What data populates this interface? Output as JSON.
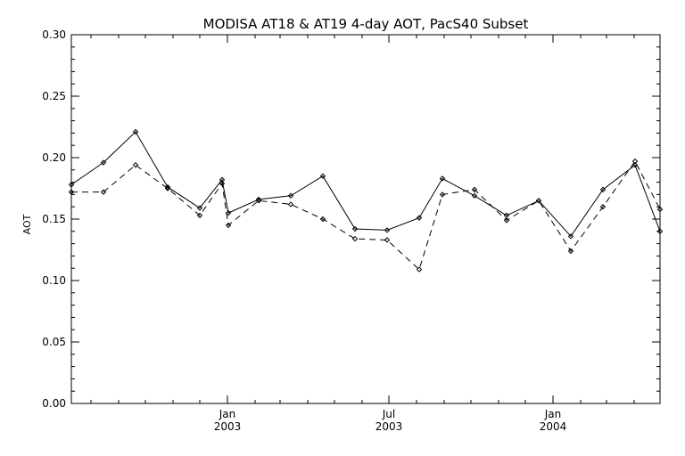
{
  "chart_data": {
    "type": "line",
    "title": "MODISA AT18 & AT19 4-day AOT, PacS40 Subset",
    "xlabel": "",
    "ylabel": "AOT",
    "ylim": [
      0.0,
      0.3
    ],
    "y_ticks": [
      "0.00",
      "0.05",
      "0.10",
      "0.15",
      "0.20",
      "0.25",
      "0.30"
    ],
    "x_range": [
      "2002-07-10",
      "2004-04-30"
    ],
    "x_ticks": [
      {
        "date": "2003-01-01",
        "month": "Jan",
        "year": "2003"
      },
      {
        "date": "2003-07-01",
        "month": "Jul",
        "year": "2003"
      },
      {
        "date": "2004-01-01",
        "month": "Jan",
        "year": "2004"
      }
    ],
    "grid": false,
    "series": [
      {
        "style": "solid",
        "color": "#000000",
        "points": [
          {
            "x": "2002-07-10",
            "y": 0.178
          },
          {
            "x": "2002-08-15",
            "y": 0.196
          },
          {
            "x": "2002-09-20",
            "y": 0.221
          },
          {
            "x": "2002-10-26",
            "y": 0.176
          },
          {
            "x": "2002-12-01",
            "y": 0.159
          },
          {
            "x": "2002-12-26",
            "y": 0.182
          },
          {
            "x": "2003-01-02",
            "y": 0.155
          },
          {
            "x": "2003-02-05",
            "y": 0.166
          },
          {
            "x": "2003-03-13",
            "y": 0.169
          },
          {
            "x": "2003-04-18",
            "y": 0.185
          },
          {
            "x": "2003-05-24",
            "y": 0.142
          },
          {
            "x": "2003-06-29",
            "y": 0.141
          },
          {
            "x": "2003-08-04",
            "y": 0.151
          },
          {
            "x": "2003-08-30",
            "y": 0.183
          },
          {
            "x": "2003-10-05",
            "y": 0.169
          },
          {
            "x": "2003-11-10",
            "y": 0.153
          },
          {
            "x": "2003-12-16",
            "y": 0.165
          },
          {
            "x": "2004-01-21",
            "y": 0.136
          },
          {
            "x": "2004-02-26",
            "y": 0.174
          },
          {
            "x": "2004-04-02",
            "y": 0.194
          },
          {
            "x": "2004-04-30",
            "y": 0.14
          }
        ]
      },
      {
        "style": "dashed",
        "color": "#000000",
        "points": [
          {
            "x": "2002-07-10",
            "y": 0.172
          },
          {
            "x": "2002-08-15",
            "y": 0.172
          },
          {
            "x": "2002-09-20",
            "y": 0.194
          },
          {
            "x": "2002-10-26",
            "y": 0.175
          },
          {
            "x": "2002-12-01",
            "y": 0.153
          },
          {
            "x": "2002-12-26",
            "y": 0.179
          },
          {
            "x": "2003-01-02",
            "y": 0.145
          },
          {
            "x": "2003-02-05",
            "y": 0.165
          },
          {
            "x": "2003-03-13",
            "y": 0.162
          },
          {
            "x": "2003-04-18",
            "y": 0.15
          },
          {
            "x": "2003-05-24",
            "y": 0.134
          },
          {
            "x": "2003-06-29",
            "y": 0.133
          },
          {
            "x": "2003-08-04",
            "y": 0.109
          },
          {
            "x": "2003-08-30",
            "y": 0.17
          },
          {
            "x": "2003-10-05",
            "y": 0.174
          },
          {
            "x": "2003-11-10",
            "y": 0.149
          },
          {
            "x": "2003-12-16",
            "y": 0.165
          },
          {
            "x": "2004-01-21",
            "y": 0.124
          },
          {
            "x": "2004-02-26",
            "y": 0.16
          },
          {
            "x": "2004-04-02",
            "y": 0.197
          },
          {
            "x": "2004-04-30",
            "y": 0.158
          }
        ]
      }
    ]
  }
}
